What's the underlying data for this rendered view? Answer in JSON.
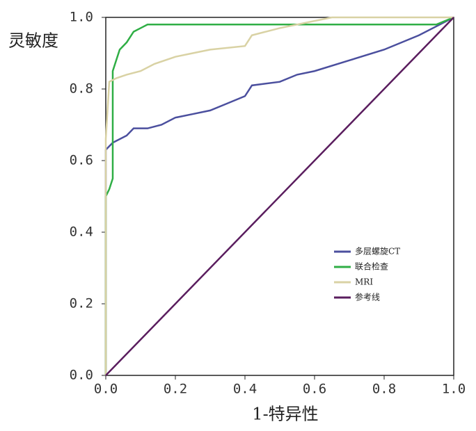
{
  "chart_data": {
    "type": "line",
    "ylabel": "灵敏度",
    "xlabel": "1-特异性",
    "xlim": [
      0,
      1
    ],
    "ylim": [
      0,
      1
    ],
    "xticks": [
      {
        "value": 0,
        "label": "0.0"
      },
      {
        "value": 0.2,
        "label": "0.2"
      },
      {
        "value": 0.4,
        "label": "0.4"
      },
      {
        "value": 0.6,
        "label": "0.6"
      },
      {
        "value": 0.8,
        "label": "0.8"
      },
      {
        "value": 1,
        "label": "1.0"
      }
    ],
    "yticks": [
      {
        "value": 0,
        "label": "0.0"
      },
      {
        "value": 0.2,
        "label": "0.2"
      },
      {
        "value": 0.4,
        "label": "0.4"
      },
      {
        "value": 0.6,
        "label": "0.6"
      },
      {
        "value": 0.8,
        "label": "0.8"
      },
      {
        "value": 1,
        "label": "1.0"
      }
    ],
    "legend": "lower right",
    "series": [
      {
        "name": "多层螺旋CT",
        "color": "#4b4f9e",
        "x": [
          0,
          0,
          0.01,
          0.02,
          0.04,
          0.06,
          0.08,
          0.12,
          0.16,
          0.2,
          0.25,
          0.3,
          0.35,
          0.4,
          0.42,
          0.5,
          0.55,
          0.6,
          0.7,
          0.8,
          0.9,
          0.96,
          1
        ],
        "values": [
          0,
          0.63,
          0.64,
          0.65,
          0.66,
          0.67,
          0.69,
          0.69,
          0.7,
          0.72,
          0.73,
          0.74,
          0.76,
          0.78,
          0.81,
          0.82,
          0.84,
          0.85,
          0.88,
          0.91,
          0.95,
          0.98,
          1
        ]
      },
      {
        "name": "联合检查",
        "color": "#2fae45",
        "x": [
          0,
          0,
          0.01,
          0.02,
          0.02,
          0.03,
          0.04,
          0.06,
          0.08,
          0.1,
          0.12,
          0.95,
          1
        ],
        "values": [
          0,
          0.5,
          0.52,
          0.55,
          0.85,
          0.88,
          0.91,
          0.93,
          0.96,
          0.97,
          0.98,
          0.98,
          1
        ]
      },
      {
        "name": "MRI",
        "color": "#d9d2a4",
        "x": [
          0,
          0,
          0.01,
          0.03,
          0.06,
          0.1,
          0.14,
          0.2,
          0.25,
          0.3,
          0.4,
          0.42,
          0.5,
          0.6,
          0.65,
          1
        ],
        "values": [
          0,
          0.66,
          0.82,
          0.83,
          0.84,
          0.85,
          0.87,
          0.89,
          0.9,
          0.91,
          0.92,
          0.95,
          0.97,
          0.99,
          1,
          1
        ]
      },
      {
        "name": "参考线",
        "color": "#5a1d5e",
        "x": [
          0,
          1
        ],
        "values": [
          0,
          1
        ]
      }
    ]
  }
}
